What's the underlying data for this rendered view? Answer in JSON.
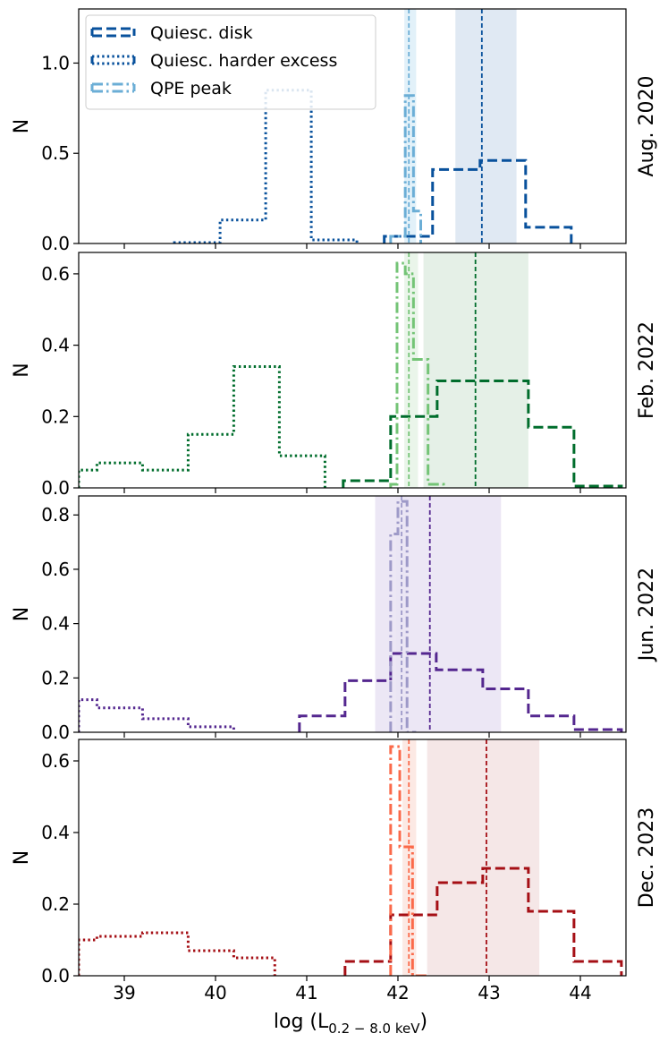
{
  "chart_data": {
    "type": "step-histogram",
    "xlabel": "log (L",
    "xlabel_sub": "0.2 − 8.0 keV",
    "xlabel_close": ")",
    "xlim": [
      38.5,
      44.5
    ],
    "xticks": [
      39,
      40,
      41,
      42,
      43,
      44
    ],
    "legend": {
      "location": "top-left",
      "entries": [
        {
          "label": "Quiesc. disk",
          "style": "dashed"
        },
        {
          "label": "Quiesc. harder excess",
          "style": "dotted"
        },
        {
          "label": "QPE peak",
          "style": "dashdot"
        }
      ]
    },
    "panels": [
      {
        "label": "Aug. 2020",
        "ylabel": "N",
        "ylim": [
          0,
          1.3
        ],
        "yticks": [
          0.0,
          0.5,
          1.0
        ],
        "colors": {
          "disk": "#08519c",
          "excess": "#08519c",
          "qpe": "#6baed6",
          "band": "#c6d7ea",
          "qpeband": "#d8ecf7"
        },
        "disk": {
          "edges": [
            41.85,
            42.38,
            42.9,
            43.4,
            43.9
          ],
          "values": [
            0.04,
            0.41,
            0.46,
            0.09
          ]
        },
        "excess": {
          "edges": [
            39.55,
            40.05,
            40.55,
            41.05,
            41.55
          ],
          "values": [
            0.005,
            0.13,
            0.85,
            0.02
          ]
        },
        "qpe": {
          "edges": [
            41.92,
            42.08,
            42.17,
            42.25
          ],
          "values": [
            0.04,
            0.82,
            0.18
          ]
        },
        "disk_median": 42.92,
        "disk_band": [
          42.63,
          43.3
        ],
        "qpe_median": 42.12,
        "qpe_band": [
          42.07,
          42.2
        ]
      },
      {
        "label": "Feb. 2022",
        "ylabel": "N",
        "ylim": [
          0,
          0.66
        ],
        "yticks": [
          0.0,
          0.2,
          0.4,
          0.6
        ],
        "colors": {
          "disk": "#006d2c",
          "excess": "#006d2c",
          "qpe": "#74c476",
          "band": "#cfe3d4",
          "qpeband": "#e3f2e3"
        },
        "disk": {
          "edges": [
            41.4,
            41.92,
            42.43,
            42.93,
            43.43,
            43.93,
            44.45
          ],
          "values": [
            0.02,
            0.2,
            0.3,
            0.3,
            0.17,
            0.005
          ]
        },
        "excess": {
          "edges": [
            38.5,
            38.7,
            39.2,
            39.7,
            40.2,
            40.7,
            41.2
          ],
          "values": [
            0.05,
            0.07,
            0.05,
            0.15,
            0.34,
            0.09
          ]
        },
        "qpe": {
          "edges": [
            41.92,
            41.99,
            42.08,
            42.17,
            42.33,
            42.5
          ],
          "values": [
            0.01,
            0.63,
            0.6,
            0.36,
            0.01
          ]
        },
        "disk_median": 42.85,
        "disk_band": [
          42.28,
          43.43
        ],
        "qpe_median": 42.12,
        "qpe_band": [
          42.07,
          42.22
        ]
      },
      {
        "label": "Jun. 2022",
        "ylabel": "N",
        "ylim": [
          0,
          0.87
        ],
        "yticks": [
          0.0,
          0.2,
          0.4,
          0.6,
          0.8
        ],
        "colors": {
          "disk": "#54278f",
          "excess": "#54278f",
          "qpe": "#9e9ac8",
          "band": "#ddd4ec",
          "qpeband": "#e9e4f3"
        },
        "disk": {
          "edges": [
            40.92,
            41.42,
            41.92,
            42.42,
            42.93,
            43.43,
            43.93,
            44.45
          ],
          "values": [
            0.06,
            0.19,
            0.29,
            0.23,
            0.16,
            0.06,
            0.01
          ]
        },
        "excess": {
          "edges": [
            38.5,
            38.7,
            39.2,
            39.7,
            40.2
          ],
          "values": [
            0.12,
            0.09,
            0.05,
            0.02
          ]
        },
        "qpe": {
          "edges": [
            41.92,
            42.0,
            42.1,
            42.2
          ],
          "values": [
            0.73,
            0.85,
            0.0
          ]
        },
        "disk_median": 42.35,
        "disk_band": [
          41.75,
          43.13
        ],
        "qpe_median": 42.04,
        "qpe_band": [
          41.98,
          42.1
        ]
      },
      {
        "label": "Dec. 2023",
        "ylabel": "N",
        "ylim": [
          0,
          0.66
        ],
        "yticks": [
          0.0,
          0.2,
          0.4,
          0.6
        ],
        "colors": {
          "disk": "#a50f15",
          "excess": "#a50f15",
          "qpe": "#fb6a4a",
          "band": "#edd3d3",
          "qpeband": "#fbe1db"
        },
        "disk": {
          "edges": [
            41.42,
            41.92,
            42.43,
            42.93,
            43.43,
            43.93,
            44.45
          ],
          "values": [
            0.04,
            0.17,
            0.26,
            0.3,
            0.18,
            0.04
          ]
        },
        "excess": {
          "edges": [
            38.5,
            38.7,
            39.2,
            39.7,
            40.2,
            40.65
          ],
          "values": [
            0.1,
            0.11,
            0.12,
            0.07,
            0.05
          ]
        },
        "qpe": {
          "edges": [
            41.92,
            42.02,
            42.16,
            42.35
          ],
          "values": [
            0.64,
            0.36,
            0.0
          ]
        },
        "disk_median": 42.97,
        "disk_band": [
          42.32,
          43.55
        ],
        "qpe_median": 42.12,
        "qpe_band": [
          42.05,
          42.2
        ]
      }
    ]
  }
}
